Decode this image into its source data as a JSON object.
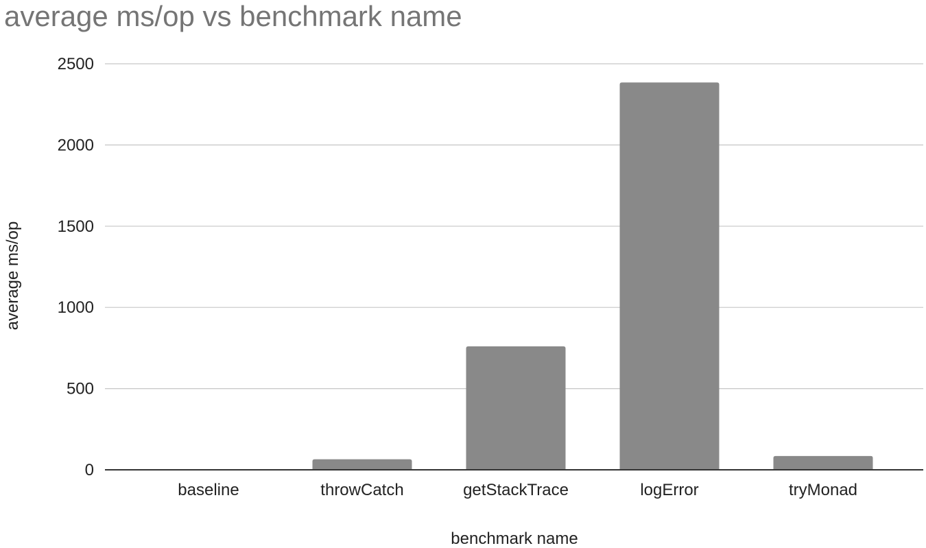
{
  "colors": {
    "bar": "#898989",
    "title": "#757575",
    "grid": "#c6c6c6",
    "text": "#222222"
  },
  "chart_data": {
    "type": "bar",
    "title": "average ms/op vs benchmark name",
    "xlabel": "benchmark name",
    "ylabel": "average ms/op",
    "categories": [
      "baseline",
      "throwCatch",
      "getStackTrace",
      "logError",
      "tryMonad"
    ],
    "series": [
      {
        "values": [
          0,
          65,
          760,
          2385,
          85
        ]
      }
    ],
    "ylim": [
      0,
      2500
    ],
    "yticks": [
      "0",
      "500",
      "1000",
      "1500",
      "2000",
      "2500"
    ],
    "grid": true,
    "legend": "none"
  }
}
